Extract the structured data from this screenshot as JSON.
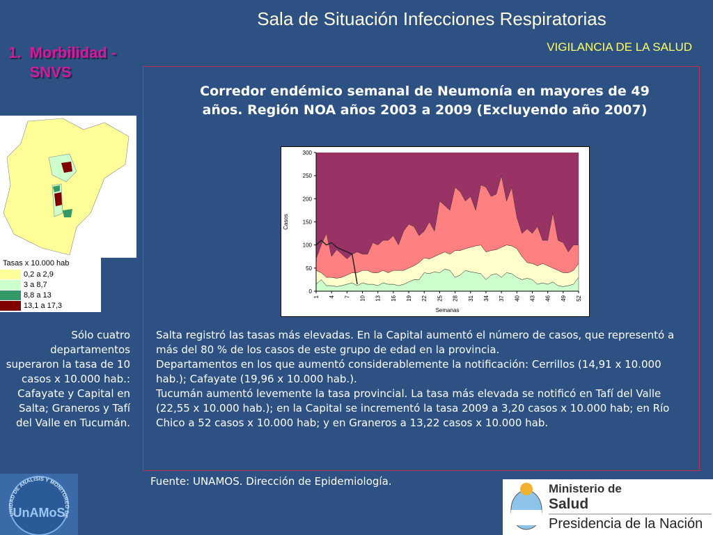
{
  "header": {
    "title": "Sala de Situación Infecciones Respiratorias",
    "subtitle": "VIGILANCIA DE LA SALUD"
  },
  "section": {
    "number": "1.",
    "text": "Morbilidad - SNVS"
  },
  "map_legend": {
    "title": "Tasas x 10.000 hab",
    "items": [
      {
        "label": "0,2 a 2,9",
        "color": "#ffff99"
      },
      {
        "label": "3 a 8,7",
        "color": "#ccffcc"
      },
      {
        "label": "8,8 a 13",
        "color": "#339966"
      },
      {
        "label": "13,1 a 17,3",
        "color": "#800000"
      }
    ]
  },
  "left_note": "Sólo cuatro departamentos superaron la tasa de 10 casos x 10.000 hab.: Cafayate y Capital en Salta; Graneros y Tafí del Valle en Tucumán.",
  "chart_data": {
    "type": "area",
    "title": "Corredor endémico semanal de Neumonía en mayores de 49 años. Región NOA años 2003 a  2009 (Excluyendo año 2007)",
    "x_label": "Semanas",
    "y_label": "Casos",
    "x": [
      1,
      2,
      3,
      4,
      5,
      6,
      7,
      8,
      9,
      10,
      11,
      12,
      13,
      14,
      15,
      16,
      17,
      18,
      19,
      20,
      21,
      22,
      23,
      24,
      25,
      26,
      27,
      28,
      29,
      30,
      31,
      32,
      33,
      34,
      35,
      36,
      37,
      38,
      39,
      40,
      41,
      42,
      43,
      44,
      45,
      46,
      47,
      48,
      49,
      50,
      51,
      52
    ],
    "xlim": [
      1,
      52
    ],
    "xticks": [
      1,
      4,
      7,
      10,
      13,
      16,
      19,
      22,
      25,
      28,
      31,
      34,
      37,
      40,
      43,
      46,
      49,
      52
    ],
    "ylim": [
      0,
      300
    ],
    "yticks": [
      0,
      50,
      100,
      150,
      200,
      250,
      300
    ],
    "background": "#993366",
    "series": [
      {
        "type": "area",
        "color": "#ccffcc",
        "values": [
          15,
          25,
          12,
          12,
          10,
          12,
          15,
          18,
          12,
          18,
          15,
          15,
          12,
          18,
          15,
          15,
          12,
          15,
          20,
          25,
          25,
          40,
          38,
          42,
          40,
          48,
          45,
          30,
          35,
          45,
          42,
          40,
          38,
          25,
          35,
          38,
          30,
          40,
          38,
          30,
          25,
          28,
          25,
          15,
          18,
          15,
          20,
          12,
          10,
          12,
          15,
          30
        ]
      },
      {
        "type": "area",
        "color": "#ffffcc",
        "values": [
          30,
          15,
          18,
          18,
          18,
          18,
          20,
          22,
          28,
          27,
          30,
          25,
          28,
          27,
          25,
          30,
          33,
          30,
          30,
          30,
          37,
          32,
          32,
          33,
          40,
          37,
          35,
          58,
          53,
          47,
          53,
          58,
          62,
          60,
          53,
          52,
          65,
          60,
          60,
          62,
          50,
          34,
          35,
          40,
          42,
          40,
          30,
          33,
          30,
          28,
          30,
          30
        ]
      },
      {
        "type": "area",
        "color": "#ff8080",
        "values": [
          25,
          60,
          95,
          45,
          62,
          50,
          35,
          40,
          45,
          35,
          35,
          65,
          60,
          65,
          70,
          75,
          55,
          85,
          95,
          85,
          58,
          58,
          80,
          55,
          115,
          100,
          95,
          137,
          127,
          103,
          110,
          77,
          130,
          140,
          117,
          120,
          155,
          95,
          127,
          68,
          50,
          73,
          65,
          85,
          50,
          55,
          120,
          65,
          65,
          45,
          55,
          40
        ]
      },
      {
        "type": "line",
        "color": "#222222",
        "values": [
          100,
          110,
          100,
          105,
          95,
          90,
          85,
          80,
          15,
          null,
          null,
          null,
          null,
          null,
          null,
          null,
          null,
          null,
          null,
          null,
          null,
          null,
          null,
          null,
          null,
          null,
          null,
          null,
          null,
          null,
          null,
          null,
          null,
          null,
          null,
          null,
          null,
          null,
          null,
          null,
          null,
          null,
          null,
          null,
          null,
          null,
          null,
          null,
          null,
          null,
          null,
          null
        ]
      }
    ]
  },
  "body": [
    "Salta registró las tasas más elevadas. En la Capital aumentó el número de casos, que representó a más del 80 % de los casos de este grupo de edad en la provincia.",
    "Departamentos en los que aumentó considerablemente la notificación: Cerrillos (14,91 x 10.000 hab.); Cafayate (19,96 x 10.000 hab.).",
    "Tucumán aumentó levemente la tasa provincial. La tasa más elevada se notificó en Tafí del Valle (22,55 x 10.000 hab.); en la Capital se incrementó la tasa 2009 a 3,20 casos x 10.000 hab; en Río Chico a 52 casos x 10.000 hab; y en Graneros a 13,22 casos x 10.000 hab."
  ],
  "source": "Fuente: UNAMOS. Dirección de Epidemiología.",
  "logo_left": {
    "ring": "UNIDAD DE ANALISIS Y MONITOREO DE LA SALUD",
    "name": "UnAMoS"
  },
  "logo_right": {
    "line1": "Ministerio de",
    "line2": "Salud",
    "line3": "Presidencia de la Nación"
  }
}
